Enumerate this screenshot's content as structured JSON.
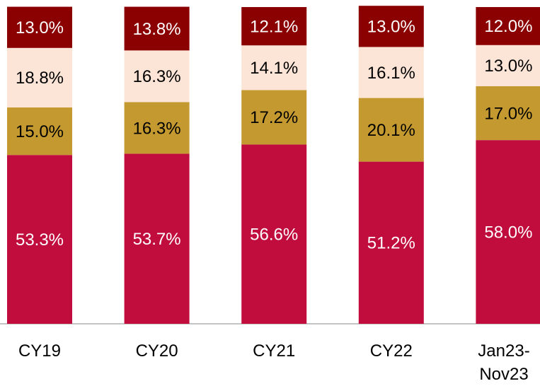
{
  "chart_data": {
    "type": "stacked_bar",
    "categories": [
      "CY19",
      "CY20",
      "CY21",
      "CY22",
      "Jan23-Nov23"
    ],
    "ylim": [
      0,
      100
    ],
    "series": [
      {
        "color": "#c00d3d",
        "text_color": "#ffffff",
        "values": [
          53.3,
          53.7,
          56.6,
          51.2,
          58.0
        ],
        "value_labels": [
          "53.3%",
          "53.7%",
          "56.6%",
          "51.2%",
          "58.0%"
        ]
      },
      {
        "color": "#c49a30",
        "text_color": "#000000",
        "values": [
          15.0,
          16.3,
          17.2,
          20.1,
          17.0
        ],
        "value_labels": [
          "15.0%",
          "16.3%",
          "17.2%",
          "20.1%",
          "17.0%"
        ]
      },
      {
        "color": "#fce5d6",
        "text_color": "#000000",
        "values": [
          18.8,
          16.3,
          14.1,
          16.1,
          13.0
        ],
        "value_labels": [
          "18.8%",
          "16.3%",
          "14.1%",
          "16.1%",
          "13.0%"
        ]
      },
      {
        "color": "#8b0000",
        "text_color": "#ffffff",
        "values": [
          13.0,
          13.8,
          12.1,
          13.0,
          12.0
        ],
        "value_labels": [
          "13.0%",
          "13.8%",
          "12.1%",
          "13.0%",
          "12.0%"
        ]
      }
    ]
  }
}
